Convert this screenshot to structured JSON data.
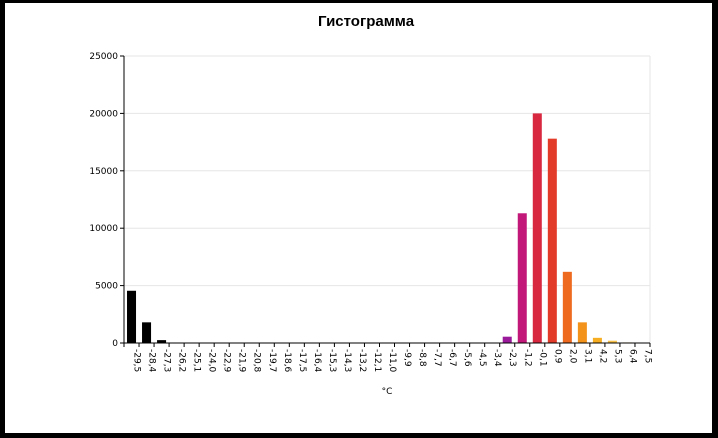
{
  "chart_data": {
    "type": "bar",
    "title": "Гистограмма",
    "xlabel": "°C",
    "ylabel": "",
    "ylim": [
      0,
      25000
    ],
    "yticks": [
      "0",
      "5000",
      "10000",
      "15000",
      "20000",
      "25000"
    ],
    "categories": [
      "-29,5",
      "-28,4",
      "-27,3",
      "-26,2",
      "-25,1",
      "-24,0",
      "-22,9",
      "-21,9",
      "-20,8",
      "-19,7",
      "-18,6",
      "-17,5",
      "-16,4",
      "-15,3",
      "-14,3",
      "-13,2",
      "-12,1",
      "-11,0",
      "-9,9",
      "-8,8",
      "-7,7",
      "-6,7",
      "-5,6",
      "-4,5",
      "-3,4",
      "-2,3",
      "-1,2",
      "-0,1",
      "0,9",
      "2,0",
      "3,1",
      "4,2",
      "5,3",
      "6,4",
      "7,5"
    ],
    "values": [
      4550,
      1800,
      250,
      0,
      0,
      0,
      0,
      0,
      0,
      0,
      0,
      0,
      0,
      0,
      0,
      0,
      0,
      0,
      0,
      0,
      0,
      0,
      0,
      0,
      0,
      550,
      11300,
      20000,
      17800,
      6200,
      1800,
      450,
      200,
      50,
      20
    ],
    "bar_colors": [
      "#000000",
      "#000000",
      "#000000",
      "#000000",
      "#000000",
      "#000000",
      "#000000",
      "#000000",
      "#000000",
      "#000000",
      "#000000",
      "#000000",
      "#000000",
      "#000000",
      "#000000",
      "#000000",
      "#000000",
      "#000000",
      "#000000",
      "#000000",
      "#000000",
      "#000000",
      "#000000",
      "#000000",
      "#000000",
      "#9b1a9b",
      "#c2187a",
      "#d8283f",
      "#e33b2a",
      "#ee6a1e",
      "#f3931c",
      "#f6ad22",
      "#f8c24a",
      "#f9d47a",
      "#fbe6b0"
    ],
    "grid": true,
    "grid_color": "#e6e6e6",
    "legend": "none"
  }
}
